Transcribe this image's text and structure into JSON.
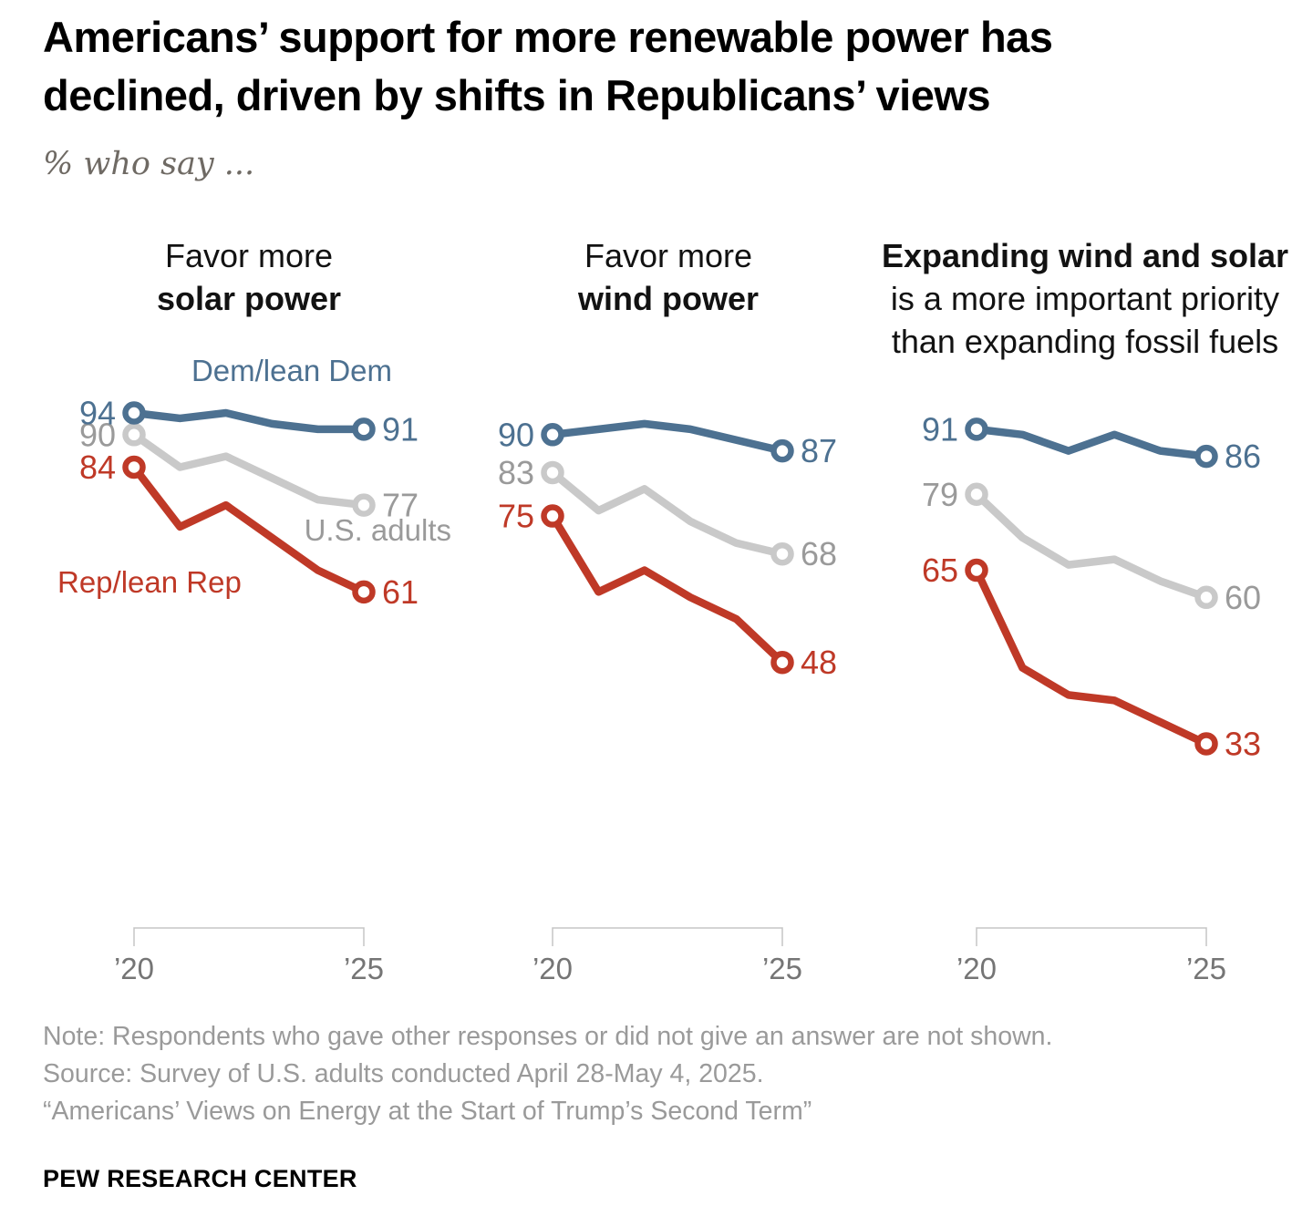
{
  "header": {
    "title_line1": "Americans’ support for more renewable power has",
    "title_line2": "declined, driven by shifts in Republicans’ views",
    "subtitle": "% who say ..."
  },
  "legend": {
    "dem": "Dem/lean Dem",
    "us": "U.S. adults",
    "rep": "Rep/lean Rep"
  },
  "colors": {
    "dem": "#4d7191",
    "rep": "#bf3927",
    "us_line": "#c9c9c9",
    "us_text": "#9a9a9a",
    "axis": "#c5c5c5",
    "axis_text": "#757575",
    "marker_fill": "#ffffff"
  },
  "xaxis": {
    "start_label": "’20",
    "end_label": "’25"
  },
  "chart_data": {
    "type": "line",
    "grid": false,
    "value_axis_hidden": true,
    "legend_position": "inline-annotations",
    "marker_style": "open-circle-endpoints",
    "x_years": [
      2020,
      2021,
      2022,
      2023,
      2024,
      2025
    ],
    "x_range": [
      2020,
      2025
    ],
    "ylim": [
      30,
      96
    ],
    "panels": [
      {
        "id": "solar",
        "title_lines": [
          "Favor more",
          "solar power"
        ],
        "series": [
          {
            "key": "dem",
            "name": "Dem/lean Dem",
            "values": [
              94,
              93,
              94,
              92,
              91,
              91
            ]
          },
          {
            "key": "us",
            "name": "U.S. adults",
            "values": [
              90,
              84,
              86,
              82,
              78,
              77
            ]
          },
          {
            "key": "rep",
            "name": "Rep/lean Rep",
            "values": [
              84,
              73,
              77,
              71,
              65,
              61
            ]
          }
        ]
      },
      {
        "id": "wind",
        "title_lines": [
          "Favor more",
          "wind power"
        ],
        "series": [
          {
            "key": "dem",
            "name": "Dem/lean Dem",
            "values": [
              90,
              91,
              92,
              91,
              89,
              87
            ]
          },
          {
            "key": "us",
            "name": "U.S. adults",
            "values": [
              83,
              76,
              80,
              74,
              70,
              68
            ]
          },
          {
            "key": "rep",
            "name": "Rep/lean Rep",
            "values": [
              75,
              61,
              65,
              60,
              56,
              48
            ]
          }
        ]
      },
      {
        "id": "priority",
        "title_lines": [
          "Expanding wind and solar",
          "is a more important priority",
          "than expanding fossil fuels"
        ],
        "series": [
          {
            "key": "dem",
            "name": "Dem/lean Dem",
            "values": [
              91,
              90,
              87,
              90,
              87,
              86
            ]
          },
          {
            "key": "us",
            "name": "U.S. adults",
            "values": [
              79,
              71,
              66,
              67,
              63,
              60
            ]
          },
          {
            "key": "rep",
            "name": "Rep/lean Rep",
            "values": [
              65,
              47,
              42,
              41,
              37,
              33
            ]
          }
        ]
      }
    ]
  },
  "footer": {
    "note": "Note: Respondents who gave other responses or did not give an answer are not shown.",
    "source": "Source: Survey of U.S. adults conducted April 28-May 4, 2025.",
    "quote": "“Americans’ Views on Energy at the Start of Trump’s Second Term”",
    "brand": "PEW RESEARCH CENTER"
  }
}
